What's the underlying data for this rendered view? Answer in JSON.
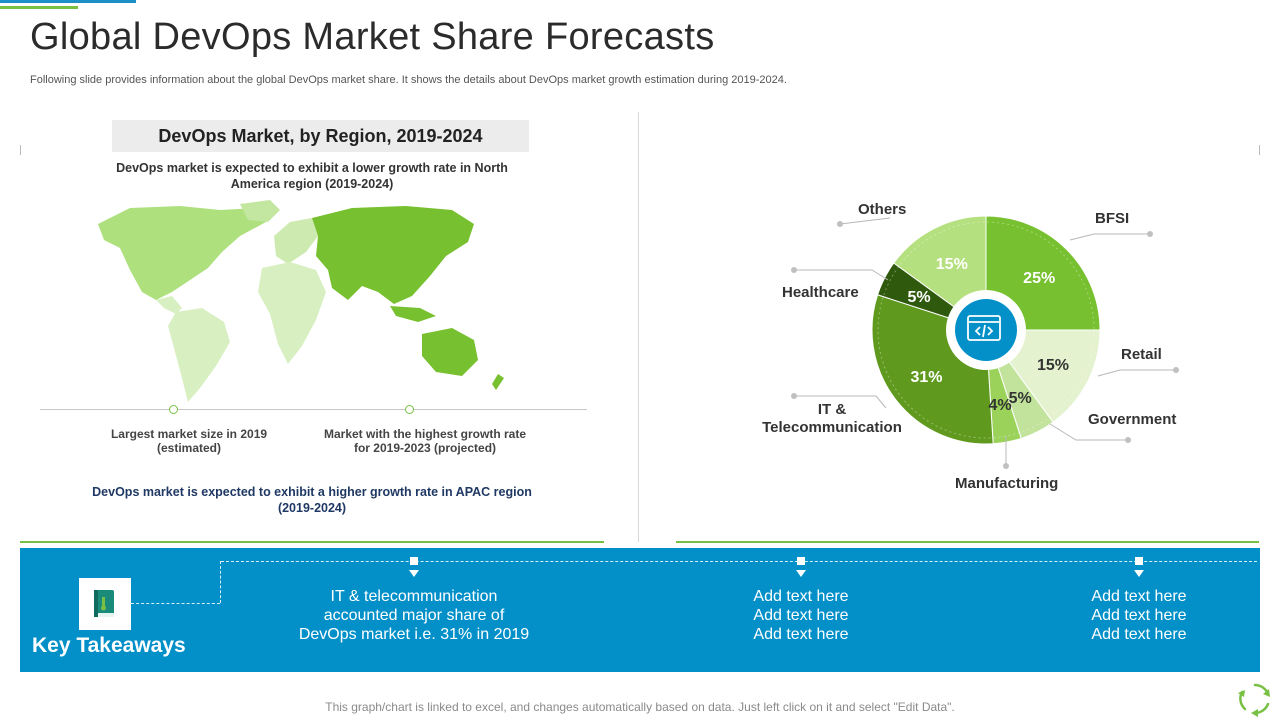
{
  "slide": {
    "title": "Global DevOps Market Share Forecasts",
    "subtitle": "Following slide provides information about the global DevOps market share. It shows the details about DevOps market growth estimation during 2019-2024."
  },
  "region_panel": {
    "title": "DevOps Market, by Region, 2019-2024",
    "note_top": "DevOps market is expected to exhibit a lower growth rate in North America region (2019-2024)",
    "marker_left_label": "Largest market size in 2019 (estimated)",
    "marker_right_label": "Market with the highest growth rate for 2019-2023 (projected)",
    "note_bottom": "DevOps market is expected to exhibit a higher growth rate in APAC region (2019-2024)"
  },
  "chart_data": {
    "type": "pie",
    "center_icon": "code-window-icon",
    "slices": [
      {
        "name": "BFSI",
        "value": 25,
        "label": "25%",
        "color": "#77c02f",
        "label_color": "#ffffff"
      },
      {
        "name": "Retail",
        "value": 15,
        "label": "15%",
        "color": "#e4f2cf",
        "label_color": "#333333"
      },
      {
        "name": "Government",
        "value": 5,
        "label": "5%",
        "color": "#c2e39c",
        "label_color": "#333333"
      },
      {
        "name": "Manufacturing",
        "value": 4,
        "label": "4%",
        "color": "#9bd25a",
        "label_color": "#333333"
      },
      {
        "name": "IT & Telecommunication",
        "value": 31,
        "label": "31%",
        "color": "#5f9a1f",
        "label_color": "#ffffff"
      },
      {
        "name": "Healthcare",
        "value": 5,
        "label": "5%",
        "color": "#2f5a0e",
        "label_color": "#ffffff"
      },
      {
        "name": "Others",
        "value": 15,
        "label": "15%",
        "color": "#b5e07f",
        "label_color": "#ffffff"
      }
    ]
  },
  "takeaways": {
    "title": "Key Takeaways",
    "icon": "book-icon",
    "item1": [
      "IT & telecommunication",
      "accounted major share of",
      "DevOps market i.e. 31% in 2019"
    ],
    "item2": [
      "Add text here",
      "Add text here",
      "Add text here"
    ],
    "item3": [
      "Add text here",
      "Add text here",
      "Add text here"
    ]
  },
  "footer": {
    "note": "This graph/chart is linked to excel, and changes automatically based on data. Just left click on it and select \"Edit Data\".",
    "icon": "refresh-cycle-icon"
  },
  "colors": {
    "accent_blue": "#0390c9",
    "accent_green": "#77c043"
  }
}
